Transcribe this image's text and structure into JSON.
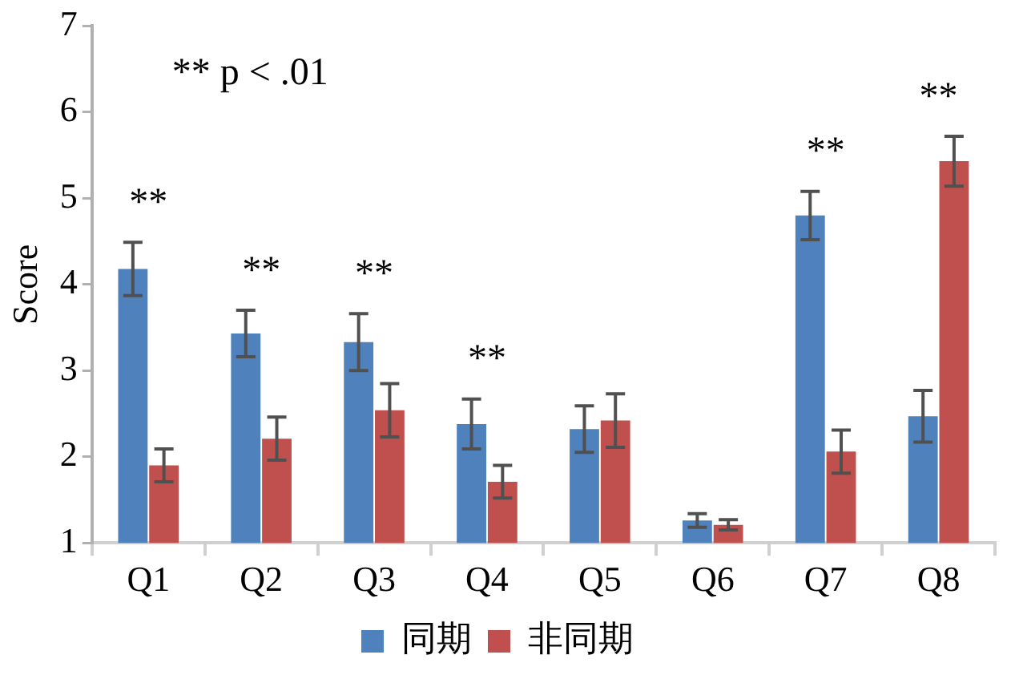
{
  "chart_data": {
    "type": "bar",
    "ylabel": "Score",
    "categories": [
      "Q1",
      "Q2",
      "Q3",
      "Q4",
      "Q5",
      "Q6",
      "Q7",
      "Q8"
    ],
    "series": [
      {
        "name": "同期",
        "color": "#4f81bd",
        "values": [
          4.18,
          3.43,
          3.33,
          2.38,
          2.32,
          1.26,
          4.8,
          2.47
        ],
        "errors": [
          0.31,
          0.27,
          0.33,
          0.29,
          0.27,
          0.08,
          0.28,
          0.3
        ]
      },
      {
        "name": "非同期",
        "color": "#c0504d",
        "values": [
          1.9,
          2.21,
          2.54,
          1.71,
          2.42,
          1.21,
          2.06,
          5.43
        ],
        "errors": [
          0.19,
          0.25,
          0.31,
          0.19,
          0.31,
          0.06,
          0.25,
          0.29
        ]
      }
    ],
    "ylim": [
      1,
      7
    ],
    "yticks": [
      1,
      2,
      3,
      4,
      5,
      6,
      7
    ],
    "grid": false,
    "legend": "bottom",
    "annotations": [
      "** p < .01",
      {
        "text": "**",
        "x": "Q1",
        "y": 4.18
      },
      {
        "text": "**",
        "x": "Q2",
        "y": 3.43
      },
      {
        "text": "**",
        "x": "Q3",
        "y": 3.33
      },
      {
        "text": "**",
        "x": "Q4",
        "y": 2.38
      },
      {
        "text": "**",
        "x": "Q7",
        "y": 4.8
      },
      {
        "text": "**",
        "x": "Q8",
        "y": 5.43
      }
    ]
  }
}
